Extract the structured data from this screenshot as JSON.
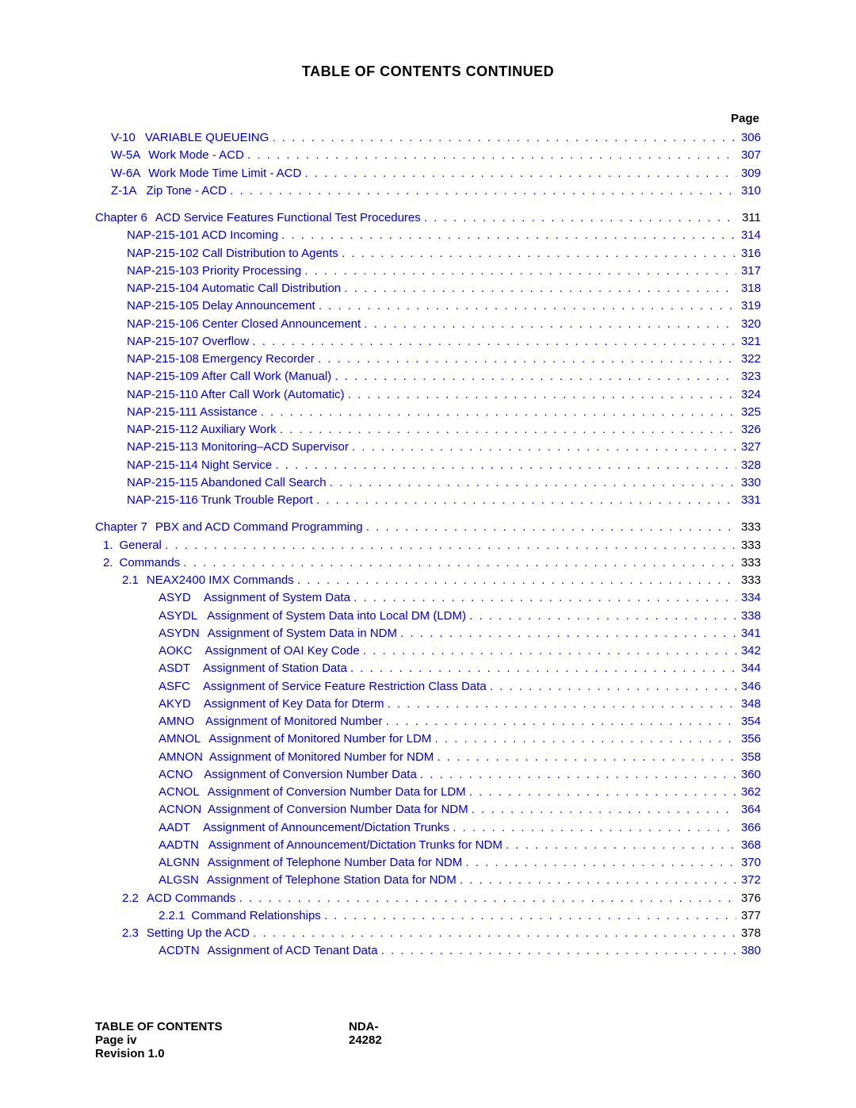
{
  "heading": "TABLE OF CONTENTS  CONTINUED",
  "pageLabel": "Page",
  "linkColor": "#0000cc",
  "textColor": "#000000",
  "footer": {
    "left1": "TABLE OF CONTENTS",
    "center": "NDA-24282",
    "left2": "Page iv",
    "left3": "Revision 1.0"
  },
  "indents": {
    "i0": 20,
    "i1": 60,
    "i2": 100,
    "i3": 130,
    "ch": 0,
    "numA": 30,
    "numB": 60
  },
  "entries": [
    {
      "indent": 20,
      "code": "V-10",
      "codePad": 12,
      "title": "VARIABLE QUEUEING",
      "page": "306"
    },
    {
      "indent": 20,
      "code": "W-5A",
      "codePad": 10,
      "title": "Work Mode - ACD",
      "page": "307"
    },
    {
      "indent": 20,
      "code": "W-6A",
      "codePad": 10,
      "title": "Work Mode Time Limit - ACD",
      "page": "309"
    },
    {
      "indent": 20,
      "code": "Z-1A",
      "codePad": 12,
      "title": "Zip Tone - ACD",
      "page": "310"
    },
    {
      "gap": true
    },
    {
      "indent": 0,
      "code": "Chapter 6",
      "codePad": 10,
      "title": "ACD Service Features Functional Test Procedures",
      "page": "311",
      "blackPage": true
    },
    {
      "indent": 40,
      "code": "",
      "codePad": 0,
      "title": "NAP-215-101 ACD Incoming",
      "page": "314"
    },
    {
      "indent": 40,
      "code": "",
      "codePad": 0,
      "title": "NAP-215-102 Call Distribution to Agents",
      "page": "316"
    },
    {
      "indent": 40,
      "code": "",
      "codePad": 0,
      "title": "NAP-215-103 Priority Processing",
      "page": "317"
    },
    {
      "indent": 40,
      "code": "",
      "codePad": 0,
      "title": "NAP-215-104 Automatic Call Distribution",
      "page": "318"
    },
    {
      "indent": 40,
      "code": "",
      "codePad": 0,
      "title": "NAP-215-105 Delay Announcement",
      "page": "319"
    },
    {
      "indent": 40,
      "code": "",
      "codePad": 0,
      "title": "NAP-215-106 Center Closed Announcement",
      "page": "320"
    },
    {
      "indent": 40,
      "code": "",
      "codePad": 0,
      "title": "NAP-215-107 Overflow",
      "page": "321"
    },
    {
      "indent": 40,
      "code": "",
      "codePad": 0,
      "title": "NAP-215-108 Emergency Recorder",
      "page": "322"
    },
    {
      "indent": 40,
      "code": "",
      "codePad": 0,
      "title": "NAP-215-109 After Call Work (Manual)",
      "page": "323"
    },
    {
      "indent": 40,
      "code": "",
      "codePad": 0,
      "title": "NAP-215-110 After Call Work (Automatic)",
      "page": "324"
    },
    {
      "indent": 40,
      "code": "",
      "codePad": 0,
      "title": "NAP-215-111 Assistance",
      "page": "325"
    },
    {
      "indent": 40,
      "code": "",
      "codePad": 0,
      "title": "NAP-215-112 Auxiliary Work",
      "page": "326"
    },
    {
      "indent": 40,
      "code": "",
      "codePad": 0,
      "title": "NAP-215-113 Monitoring–ACD Supervisor",
      "page": "327"
    },
    {
      "indent": 40,
      "code": "",
      "codePad": 0,
      "title": "NAP-215-114 Night Service",
      "page": "328"
    },
    {
      "indent": 40,
      "code": "",
      "codePad": 0,
      "title": "NAP-215-115 Abandoned Call Search",
      "page": "330"
    },
    {
      "indent": 40,
      "code": "",
      "codePad": 0,
      "title": "NAP-215-116 Trunk Trouble Report",
      "page": "331"
    },
    {
      "gap": true
    },
    {
      "indent": 0,
      "code": "Chapter 7",
      "codePad": 10,
      "title": "PBX and ACD Command Programming",
      "page": "333",
      "blackPage": true
    },
    {
      "indent": 10,
      "code": "1.",
      "codePad": 8,
      "title": "General",
      "page": "333",
      "blackPage": true
    },
    {
      "indent": 10,
      "code": "2.",
      "codePad": 8,
      "title": "Commands",
      "page": "333",
      "blackPage": true
    },
    {
      "indent": 34,
      "code": "2.1",
      "codePad": 10,
      "title": "NEAX2400 IMX Commands",
      "page": "333",
      "blackPage": true
    },
    {
      "indent": 80,
      "code": "ASYD",
      "codePad": 16,
      "title": "Assignment of System Data",
      "page": "334"
    },
    {
      "indent": 80,
      "code": "ASYDL",
      "codePad": 12,
      "title": "Assignment of System Data into Local DM (LDM)",
      "page": "338"
    },
    {
      "indent": 80,
      "code": "ASYDN",
      "codePad": 10,
      "title": "Assignment of System Data in NDM",
      "page": "341"
    },
    {
      "indent": 80,
      "code": "AOKC",
      "codePad": 16,
      "title": "Assignment of OAI Key Code",
      "page": "342"
    },
    {
      "indent": 80,
      "code": "ASDT",
      "codePad": 16,
      "title": "Assignment of Station Data",
      "page": "344"
    },
    {
      "indent": 80,
      "code": "ASFC",
      "codePad": 16,
      "title": "Assignment of Service Feature Restriction Class Data",
      "page": "346"
    },
    {
      "indent": 80,
      "code": "AKYD",
      "codePad": 16,
      "title": "Assignment of Key Data for Dterm",
      "page": "348"
    },
    {
      "indent": 80,
      "code": "AMNO",
      "codePad": 14,
      "title": "Assignment of Monitored Number",
      "page": "354"
    },
    {
      "indent": 80,
      "code": "AMNOL",
      "codePad": 10,
      "title": "Assignment of Monitored Number for LDM",
      "page": "356"
    },
    {
      "indent": 80,
      "code": "AMNON",
      "codePad": 8,
      "title": "Assignment of Monitored Number for NDM",
      "page": "358"
    },
    {
      "indent": 80,
      "code": "ACNO",
      "codePad": 14,
      "title": "Assignment of Conversion Number Data",
      "page": "360"
    },
    {
      "indent": 80,
      "code": "ACNOL",
      "codePad": 10,
      "title": "Assignment of Conversion Number Data for LDM",
      "page": "362"
    },
    {
      "indent": 80,
      "code": "ACNON",
      "codePad": 8,
      "title": "Assignment of Conversion Number Data for NDM",
      "page": "364"
    },
    {
      "indent": 80,
      "code": "AADT",
      "codePad": 16,
      "title": "Assignment of Announcement/Dictation Trunks",
      "page": "366"
    },
    {
      "indent": 80,
      "code": "AADTN",
      "codePad": 12,
      "title": "Assignment of Announcement/Dictation Trunks for NDM",
      "page": "368"
    },
    {
      "indent": 80,
      "code": "ALGNN",
      "codePad": 10,
      "title": "Assignment of Telephone Number Data for NDM",
      "page": "370"
    },
    {
      "indent": 80,
      "code": "ALGSN",
      "codePad": 10,
      "title": "Assignment of Telephone Station Data for NDM",
      "page": "372"
    },
    {
      "indent": 34,
      "code": "2.2",
      "codePad": 10,
      "title": "ACD Commands",
      "page": "376",
      "blackPage": true
    },
    {
      "indent": 80,
      "code": "2.2.1",
      "codePad": 8,
      "title": "Command Relationships",
      "page": "377",
      "blackPage": true
    },
    {
      "indent": 34,
      "code": "2.3",
      "codePad": 10,
      "title": "Setting Up the ACD",
      "page": "378",
      "blackPage": true
    },
    {
      "indent": 80,
      "code": "ACDTN",
      "codePad": 10,
      "title": "Assignment of ACD Tenant Data",
      "page": "380"
    }
  ]
}
